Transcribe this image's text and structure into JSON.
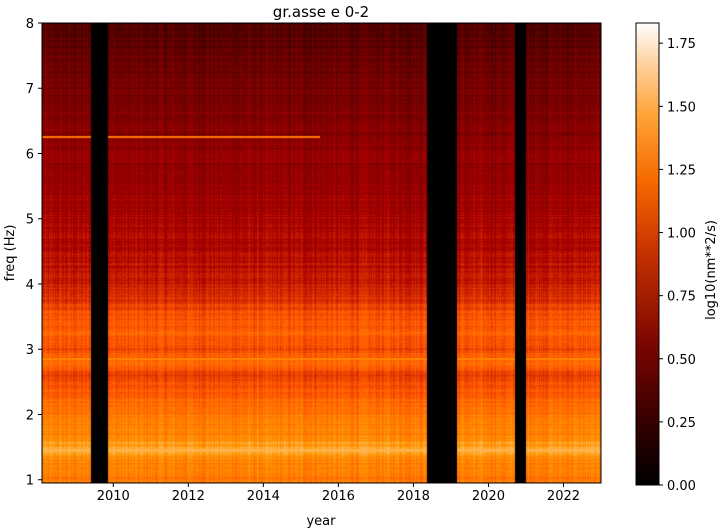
{
  "chart_data": {
    "type": "heatmap",
    "title": "gr.asse e 0-2",
    "xlabel": "year",
    "ylabel": "freq (Hz)",
    "colorbar_label": "log10(nm**2/s)",
    "colormap": "gist_heat",
    "xlim": [
      2008.1,
      2023.0
    ],
    "ylim": [
      0.95,
      8.0
    ],
    "clim": [
      0.0,
      1.83
    ],
    "x_ticks": [
      2010,
      2012,
      2014,
      2016,
      2018,
      2020,
      2022
    ],
    "x_tick_labels": [
      "2010",
      "2012",
      "2014",
      "2016",
      "2018",
      "2020",
      "2022"
    ],
    "y_ticks": [
      1,
      2,
      3,
      4,
      5,
      6,
      7,
      8
    ],
    "y_tick_labels": [
      "1",
      "2",
      "3",
      "4",
      "5",
      "6",
      "7",
      "8"
    ],
    "colorbar_ticks": [
      0.0,
      0.25,
      0.5,
      0.75,
      1.0,
      1.25,
      1.5,
      1.75
    ],
    "colorbar_tick_labels": [
      "0.00",
      "0.25",
      "0.50",
      "0.75",
      "1.00",
      "1.25",
      "1.50",
      "1.75"
    ],
    "data_gaps_years": [
      [
        2009.4,
        2009.85
      ],
      [
        2018.35,
        2019.15
      ],
      [
        2020.7,
        2021.0
      ]
    ],
    "frequency_profile": {
      "freq": [
        1.0,
        1.3,
        1.45,
        1.7,
        2.0,
        2.3,
        2.6,
        2.85,
        3.0,
        3.2,
        3.5,
        3.75,
        4.0,
        4.5,
        5.0,
        5.5,
        6.0,
        6.5,
        7.0,
        7.5,
        8.0
      ],
      "value": [
        1.25,
        1.3,
        1.45,
        1.3,
        1.25,
        1.12,
        1.0,
        1.2,
        1.05,
        1.15,
        1.08,
        0.95,
        0.85,
        0.78,
        0.72,
        0.66,
        0.62,
        0.55,
        0.5,
        0.42,
        0.35
      ]
    },
    "line_features": [
      {
        "freq": 1.45,
        "value": 1.5
      },
      {
        "freq": 2.85,
        "value": 1.3
      },
      {
        "freq": 6.25,
        "value": 1.25,
        "x_range": [
          2008.1,
          2015.5
        ]
      }
    ]
  }
}
